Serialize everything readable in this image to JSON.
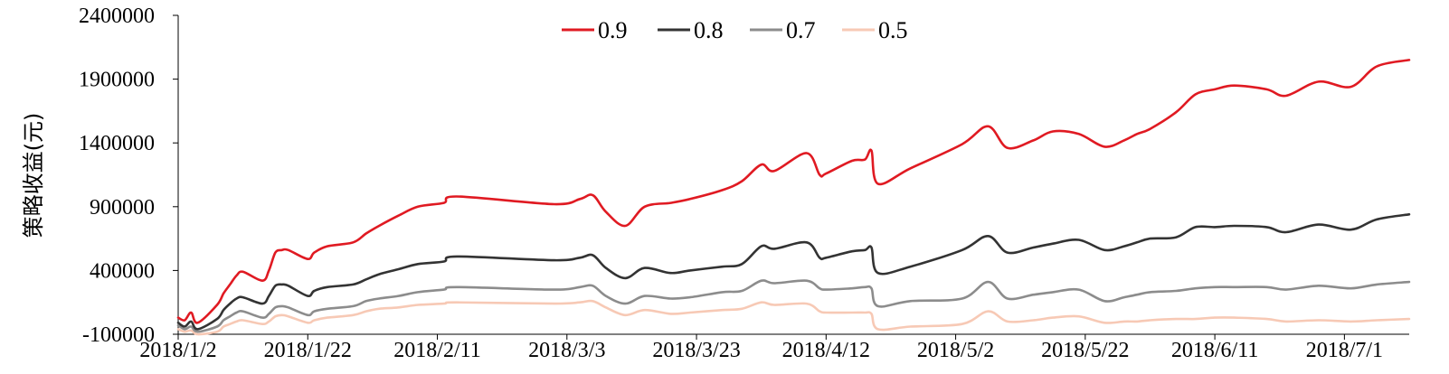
{
  "chart_data": {
    "type": "line",
    "title": "",
    "xlabel": "",
    "ylabel": "策略收益(元)",
    "ylim": [
      -100000,
      2400000
    ],
    "yticks": [
      "-100000",
      "400000",
      "900000",
      "1400000",
      "1900000",
      "2400000"
    ],
    "ytick_values": [
      -100000,
      400000,
      900000,
      1400000,
      1900000,
      2400000
    ],
    "xlim": [
      "2018-01-02",
      "2018-07-11"
    ],
    "xticks": [
      "2018/1/2",
      "2018/1/22",
      "2018/2/11",
      "2018/3/3",
      "2018/3/23",
      "2018/4/12",
      "2018/5/2",
      "2018/5/22",
      "2018/6/11",
      "2018/7/1"
    ],
    "xtick_dates": [
      "2018-01-02",
      "2018-01-22",
      "2018-02-11",
      "2018-03-03",
      "2018-03-23",
      "2018-04-12",
      "2018-05-02",
      "2018-05-22",
      "2018-06-11",
      "2018-07-01"
    ],
    "grid": false,
    "legend_position": "top-center",
    "x": [
      "2018-01-02",
      "2018-01-03",
      "2018-01-04",
      "2018-01-05",
      "2018-01-08",
      "2018-01-09",
      "2018-01-10",
      "2018-01-11",
      "2018-01-12",
      "2018-01-15",
      "2018-01-16",
      "2018-01-17",
      "2018-01-18",
      "2018-01-19",
      "2018-01-22",
      "2018-01-23",
      "2018-01-25",
      "2018-01-29",
      "2018-01-31",
      "2018-02-02",
      "2018-02-05",
      "2018-02-08",
      "2018-02-12",
      "2018-02-14",
      "2018-03-01",
      "2018-03-05",
      "2018-03-07",
      "2018-03-09",
      "2018-03-12",
      "2018-03-15",
      "2018-03-19",
      "2018-03-22",
      "2018-03-27",
      "2018-03-30",
      "2018-04-02",
      "2018-04-04",
      "2018-04-09",
      "2018-04-11",
      "2018-04-12",
      "2018-04-16",
      "2018-04-18",
      "2018-04-19",
      "2018-04-20",
      "2018-04-25",
      "2018-05-03",
      "2018-05-07",
      "2018-05-10",
      "2018-05-14",
      "2018-05-17",
      "2018-05-21",
      "2018-05-25",
      "2018-05-28",
      "2018-05-30",
      "2018-06-01",
      "2018-06-05",
      "2018-06-08",
      "2018-06-11",
      "2018-06-14",
      "2018-06-19",
      "2018-06-22",
      "2018-06-27",
      "2018-07-02",
      "2018-07-06",
      "2018-07-11"
    ],
    "series": [
      {
        "name": "0.9",
        "color": "#e01a22",
        "values": [
          30000,
          10000,
          70000,
          -10000,
          130000,
          220000,
          290000,
          360000,
          390000,
          320000,
          400000,
          540000,
          560000,
          560000,
          490000,
          540000,
          590000,
          620000,
          690000,
          750000,
          830000,
          900000,
          930000,
          980000,
          920000,
          960000,
          990000,
          860000,
          750000,
          900000,
          930000,
          960000,
          1030000,
          1100000,
          1230000,
          1180000,
          1320000,
          1150000,
          1160000,
          1260000,
          1270000,
          1340000,
          1080000,
          1200000,
          1390000,
          1530000,
          1360000,
          1420000,
          1490000,
          1470000,
          1370000,
          1420000,
          1470000,
          1510000,
          1640000,
          1780000,
          1820000,
          1850000,
          1820000,
          1770000,
          1880000,
          1840000,
          2000000,
          2050000
        ]
      },
      {
        "name": "0.8",
        "color": "#333333",
        "values": [
          -10000,
          -40000,
          0,
          -60000,
          20000,
          90000,
          140000,
          180000,
          190000,
          140000,
          200000,
          280000,
          290000,
          280000,
          200000,
          240000,
          270000,
          290000,
          330000,
          370000,
          410000,
          450000,
          470000,
          510000,
          480000,
          500000,
          520000,
          420000,
          340000,
          420000,
          380000,
          400000,
          430000,
          450000,
          590000,
          570000,
          620000,
          500000,
          500000,
          550000,
          560000,
          580000,
          380000,
          430000,
          560000,
          670000,
          540000,
          580000,
          610000,
          640000,
          560000,
          590000,
          620000,
          650000,
          660000,
          740000,
          740000,
          750000,
          740000,
          700000,
          760000,
          720000,
          800000,
          840000
        ]
      },
      {
        "name": "0.7",
        "color": "#8c8c8c",
        "values": [
          -30000,
          -60000,
          -40000,
          -80000,
          -40000,
          10000,
          40000,
          70000,
          80000,
          30000,
          60000,
          110000,
          120000,
          110000,
          50000,
          80000,
          100000,
          120000,
          160000,
          180000,
          200000,
          230000,
          250000,
          270000,
          250000,
          270000,
          280000,
          200000,
          140000,
          200000,
          180000,
          190000,
          230000,
          240000,
          320000,
          300000,
          320000,
          260000,
          250000,
          260000,
          270000,
          260000,
          120000,
          160000,
          180000,
          310000,
          180000,
          210000,
          230000,
          250000,
          160000,
          190000,
          210000,
          230000,
          240000,
          260000,
          270000,
          270000,
          270000,
          250000,
          280000,
          260000,
          290000,
          310000
        ]
      },
      {
        "name": "0.5",
        "color": "#f7c9b5",
        "values": [
          -60000,
          -80000,
          -70000,
          -100000,
          -80000,
          -40000,
          -20000,
          0,
          10000,
          -20000,
          0,
          40000,
          50000,
          40000,
          -10000,
          10000,
          30000,
          50000,
          80000,
          100000,
          110000,
          130000,
          140000,
          150000,
          140000,
          150000,
          160000,
          110000,
          50000,
          90000,
          60000,
          70000,
          90000,
          100000,
          150000,
          130000,
          140000,
          80000,
          70000,
          70000,
          70000,
          60000,
          -60000,
          -40000,
          -20000,
          80000,
          0,
          10000,
          30000,
          40000,
          -10000,
          0,
          0,
          10000,
          20000,
          20000,
          30000,
          30000,
          20000,
          0,
          10000,
          0,
          10000,
          20000
        ]
      }
    ]
  }
}
